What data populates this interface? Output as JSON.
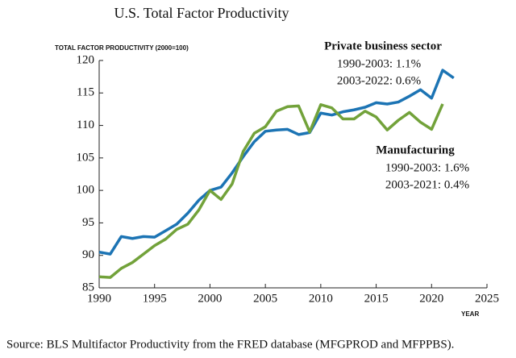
{
  "chart_data": {
    "type": "line",
    "title": "U.S. Total Factor Productivity",
    "y_label": "TOTAL FACTOR PRODUCTIVITY (2000=100)",
    "x_label": "YEAR",
    "source": "Source: BLS Multifactor Productivity from the FRED database (MFGPROD and MFPPBS).",
    "annotations": [
      "Private business sector",
      "1990-2003: 1.1%",
      "2003-2022: 0.6%",
      "Manufacturing",
      "1990-2003: 1.6%",
      "2003-2021: 0.4%"
    ],
    "x": [
      1990,
      1991,
      1992,
      1993,
      1994,
      1995,
      1996,
      1997,
      1998,
      1999,
      2000,
      2001,
      2002,
      2003,
      2004,
      2005,
      2006,
      2007,
      2008,
      2009,
      2010,
      2011,
      2012,
      2013,
      2014,
      2015,
      2016,
      2017,
      2018,
      2019,
      2020,
      2021,
      2022
    ],
    "series": [
      {
        "name": "Private business sector",
        "color": "#1c74b4",
        "values": [
          90.5,
          90.2,
          92.9,
          92.6,
          92.9,
          92.8,
          93.8,
          94.8,
          96.5,
          98.5,
          100,
          100.5,
          102.7,
          105.2,
          107.5,
          109.1,
          109.3,
          109.4,
          108.6,
          108.9,
          111.9,
          111.6,
          112.1,
          112.4,
          112.8,
          113.5,
          113.3,
          113.6,
          114.5,
          115.5,
          114.2,
          118.5,
          117.3
        ]
      },
      {
        "name": "Manufacturing",
        "color": "#72a23a",
        "values": [
          86.7,
          86.6,
          88.0,
          88.9,
          90.2,
          91.5,
          92.5,
          94.0,
          94.8,
          97.0,
          100,
          98.6,
          101.0,
          106.0,
          108.8,
          109.8,
          112.2,
          112.9,
          113.0,
          109.0,
          113.2,
          112.7,
          111.0,
          111.0,
          112.2,
          111.3,
          109.3,
          110.8,
          112.0,
          110.5,
          109.4,
          113.3,
          null
        ]
      }
    ],
    "xlim": [
      1990,
      2025
    ],
    "xticks": [
      1990,
      1995,
      2000,
      2005,
      2010,
      2015,
      2020,
      2025
    ],
    "ylim": [
      85,
      120
    ],
    "yticks": [
      85,
      90,
      95,
      100,
      105,
      110,
      115,
      120
    ],
    "grid": false
  }
}
